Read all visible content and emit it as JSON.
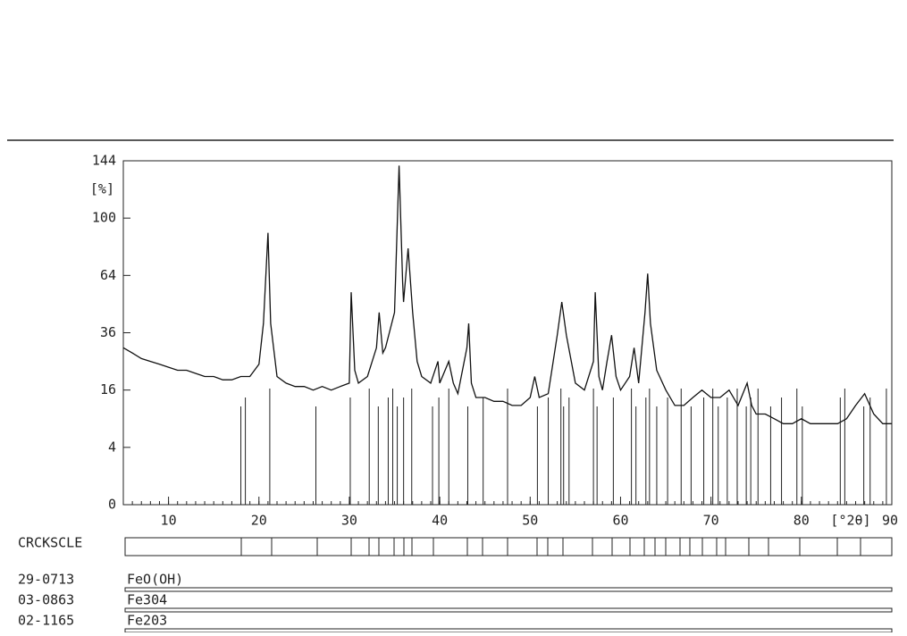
{
  "chart_data": {
    "type": "line",
    "y_unit": "[%]",
    "x_unit": "[°2θ]",
    "y_scale": "sqrt",
    "grid": false,
    "color": "#111111",
    "xlim": [
      5,
      90
    ],
    "ylim": [
      0,
      144
    ],
    "xticks": [
      10,
      20,
      30,
      40,
      50,
      60,
      70,
      80,
      90
    ],
    "yticks": [
      0,
      4,
      16,
      36,
      64,
      100,
      144
    ],
    "x": [
      5,
      6,
      7,
      8,
      9,
      10,
      11,
      12,
      13,
      14,
      15,
      16,
      17,
      18,
      19,
      20,
      20.5,
      21,
      21.3,
      22,
      23,
      24,
      25,
      26,
      27,
      28,
      29,
      30,
      30.2,
      30.6,
      31,
      32,
      33,
      33.3,
      33.7,
      34,
      35,
      35.5,
      35.9,
      36,
      36.5,
      37,
      37.5,
      38,
      39,
      39.8,
      40,
      41,
      41.5,
      42,
      43,
      43.2,
      43.5,
      44,
      45,
      46,
      47,
      48,
      49,
      50,
      50.5,
      51,
      52,
      53,
      53.5,
      54,
      55,
      56,
      57,
      57.2,
      57.6,
      58,
      58.5,
      59,
      59.5,
      60,
      61,
      61.5,
      62,
      62.7,
      63,
      63.3,
      64,
      65,
      66,
      67,
      68,
      69,
      70,
      71,
      72,
      73,
      74,
      74.5,
      75,
      76,
      77,
      78,
      79,
      80,
      81,
      82,
      83,
      84,
      85,
      86,
      87,
      88,
      89,
      90
    ],
    "series": [
      {
        "values": [
          30,
          28,
          26,
          25,
          24,
          23,
          22,
          22,
          21,
          20,
          20,
          19,
          19,
          20,
          20,
          24,
          40,
          90,
          40,
          20,
          18,
          17,
          17,
          16,
          17,
          16,
          17,
          18,
          55,
          22,
          18,
          20,
          30,
          45,
          28,
          30,
          45,
          140,
          60,
          50,
          80,
          45,
          25,
          20,
          18,
          25,
          18,
          25,
          18,
          15,
          30,
          40,
          18,
          14,
          14,
          13,
          13,
          12,
          12,
          14,
          20,
          14,
          15,
          35,
          50,
          35,
          18,
          16,
          25,
          55,
          20,
          16,
          25,
          35,
          20,
          16,
          20,
          30,
          18,
          45,
          65,
          40,
          22,
          16,
          12,
          12,
          14,
          16,
          14,
          14,
          16,
          12,
          18,
          12,
          10,
          10,
          9,
          8,
          8,
          9,
          8,
          8,
          8,
          8,
          9,
          12,
          15,
          10,
          8,
          8
        ]
      }
    ],
    "peak_markers": [
      18.0,
      18.5,
      21.2,
      26.3,
      30.1,
      32.2,
      33.2,
      34.3,
      34.8,
      35.3,
      36.0,
      36.9,
      39.2,
      39.9,
      41.0,
      43.1,
      44.8,
      47.5,
      50.8,
      52.0,
      53.4,
      53.7,
      54.3,
      57.0,
      57.4,
      59.2,
      61.2,
      61.7,
      62.8,
      63.2,
      64.0,
      65.2,
      66.7,
      67.8,
      69.2,
      70.2,
      70.8,
      71.8,
      72.9,
      73.9,
      74.4,
      75.2,
      76.6,
      77.8,
      79.5,
      80.1,
      84.3,
      84.8,
      86.9,
      87.6,
      89.4
    ],
    "crackscale_label": "CRCKSCLE",
    "phases": [
      {
        "code": "29-0713",
        "name": "FeO(OH)"
      },
      {
        "code": "03-0863",
        "name": "Fe304"
      },
      {
        "code": "02-1165",
        "name": "Fe203"
      }
    ]
  }
}
